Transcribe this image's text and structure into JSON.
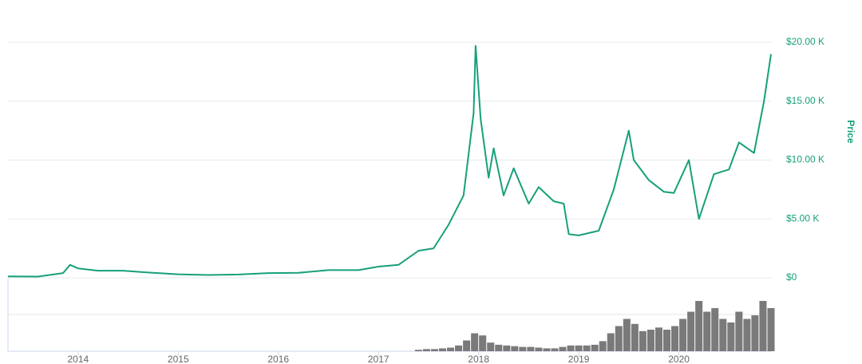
{
  "chart_data": [
    {
      "type": "line",
      "y_axis_label": "Price",
      "color": "#17a07a",
      "x": [
        2013.3,
        2013.6,
        2013.85,
        2013.92,
        2014.0,
        2014.2,
        2014.45,
        2014.7,
        2015.0,
        2015.3,
        2015.6,
        2015.9,
        2016.2,
        2016.5,
        2016.8,
        2017.0,
        2017.2,
        2017.4,
        2017.55,
        2017.7,
        2017.85,
        2017.95,
        2017.97,
        2018.02,
        2018.1,
        2018.15,
        2018.25,
        2018.35,
        2018.5,
        2018.6,
        2018.75,
        2018.85,
        2018.9,
        2019.0,
        2019.2,
        2019.35,
        2019.5,
        2019.55,
        2019.7,
        2019.85,
        2019.95,
        2020.1,
        2020.2,
        2020.35,
        2020.5,
        2020.6,
        2020.75,
        2020.85,
        2020.92
      ],
      "values": [
        120,
        100,
        400,
        1100,
        800,
        600,
        600,
        450,
        300,
        240,
        280,
        400,
        420,
        650,
        650,
        950,
        1100,
        2300,
        2500,
        4500,
        7000,
        14000,
        19700,
        13500,
        8500,
        11000,
        7000,
        9300,
        6300,
        7700,
        6500,
        6300,
        3700,
        3600,
        4000,
        7500,
        12500,
        10000,
        8300,
        7300,
        7200,
        10000,
        5000,
        8800,
        9200,
        11500,
        10600,
        15000,
        19000
      ],
      "xlim": [
        2013.3,
        2020.92
      ],
      "xticks": [
        2014,
        2015,
        2016,
        2017,
        2018,
        2019,
        2020
      ],
      "ylim": [
        0,
        20000
      ],
      "yticks": [
        {
          "value": 0,
          "label": "$0"
        },
        {
          "value": 5000,
          "label": "$5.00 K"
        },
        {
          "value": 10000,
          "label": "$10.00 K"
        },
        {
          "value": 15000,
          "label": "$15.00 K"
        },
        {
          "value": 20000,
          "label": "$20.00 K"
        }
      ],
      "grid": true
    },
    {
      "type": "bar",
      "color": "#7a7a7a",
      "x": [
        2017.4,
        2017.48,
        2017.56,
        2017.64,
        2017.72,
        2017.8,
        2017.88,
        2017.96,
        2018.04,
        2018.12,
        2018.2,
        2018.28,
        2018.36,
        2018.44,
        2018.52,
        2018.6,
        2018.68,
        2018.76,
        2018.84,
        2018.92,
        2019.0,
        2019.08,
        2019.16,
        2019.24,
        2019.32,
        2019.4,
        2019.48,
        2019.56,
        2019.64,
        2019.72,
        2019.8,
        2019.88,
        2019.96,
        2020.04,
        2020.12,
        2020.2,
        2020.28,
        2020.36,
        2020.44,
        2020.52,
        2020.6,
        2020.68,
        2020.76,
        2020.84,
        2020.92
      ],
      "values": [
        2,
        3,
        3,
        4,
        5,
        8,
        15,
        25,
        22,
        12,
        9,
        8,
        7,
        6,
        6,
        5,
        4,
        4,
        6,
        8,
        8,
        8,
        9,
        14,
        25,
        35,
        45,
        38,
        28,
        30,
        33,
        30,
        35,
        45,
        55,
        70,
        55,
        60,
        45,
        40,
        55,
        45,
        50,
        70,
        60
      ],
      "xlim": [
        2013.3,
        2020.92
      ],
      "ylim": [
        0,
        100
      ]
    }
  ]
}
